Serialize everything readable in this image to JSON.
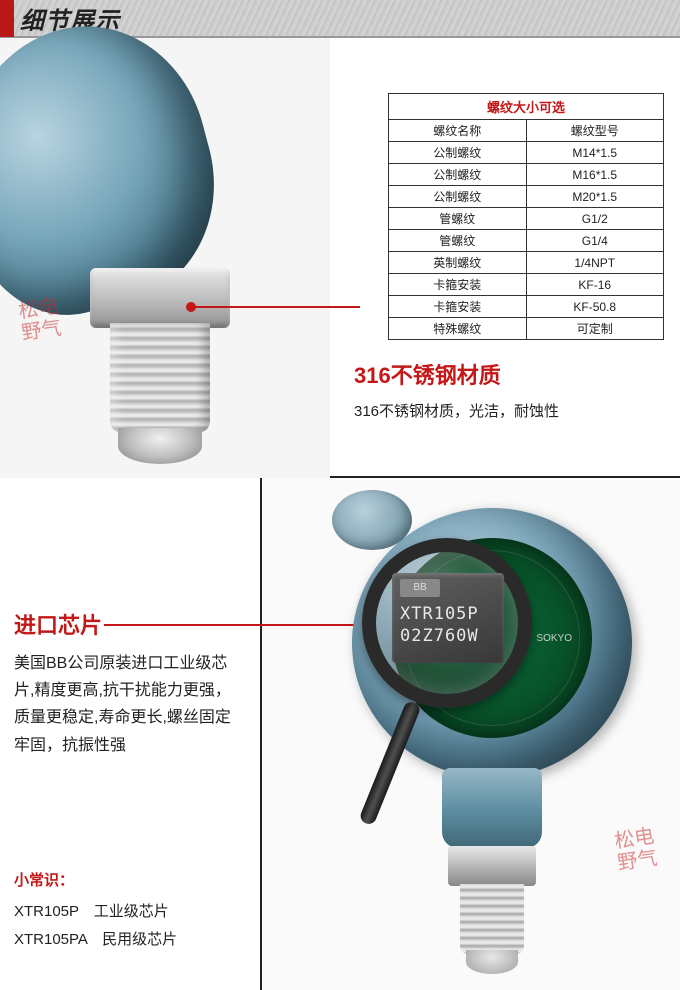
{
  "header": {
    "title": "细节展示"
  },
  "section1": {
    "table_header": "螺纹大小可选",
    "columns": [
      "螺纹名称",
      "螺纹型号"
    ],
    "rows": [
      [
        "公制螺纹",
        "M14*1.5"
      ],
      [
        "公制螺纹",
        "M16*1.5"
      ],
      [
        "公制螺纹",
        "M20*1.5"
      ],
      [
        "管螺纹",
        "G1/2"
      ],
      [
        "管螺纹",
        "G1/4"
      ],
      [
        "英制螺纹",
        "1/4NPT"
      ],
      [
        "卡箍安装",
        "KF-16"
      ],
      [
        "卡箍安装",
        "KF-50.8"
      ],
      [
        "特殊螺纹",
        "可定制"
      ]
    ],
    "feature_title": "316不锈钢材质",
    "feature_desc": "316不锈钢材质，光洁，耐蚀性"
  },
  "section2": {
    "feature_title": "进口芯片",
    "feature_desc": "美国BB公司原装进口工业级芯片,精度更高,抗干扰能力更强，质量更稳定,寿命更长,螺丝固定牢固，抗振性强",
    "tips_label": "小常识：",
    "tips_line1": "XTR105P　工业级芯片",
    "tips_line2": "XTR105PA　民用级芯片",
    "chip_logo": "BB",
    "chip_line1": "XTR105P",
    "chip_line2": "02Z760W",
    "pcb_label": "SOKYO"
  },
  "stamp": {
    "line1": "松电",
    "line2": "野气"
  },
  "colors": {
    "accent": "#c41818",
    "header_accent": "#b81818",
    "text": "#222222",
    "border": "#333333"
  }
}
